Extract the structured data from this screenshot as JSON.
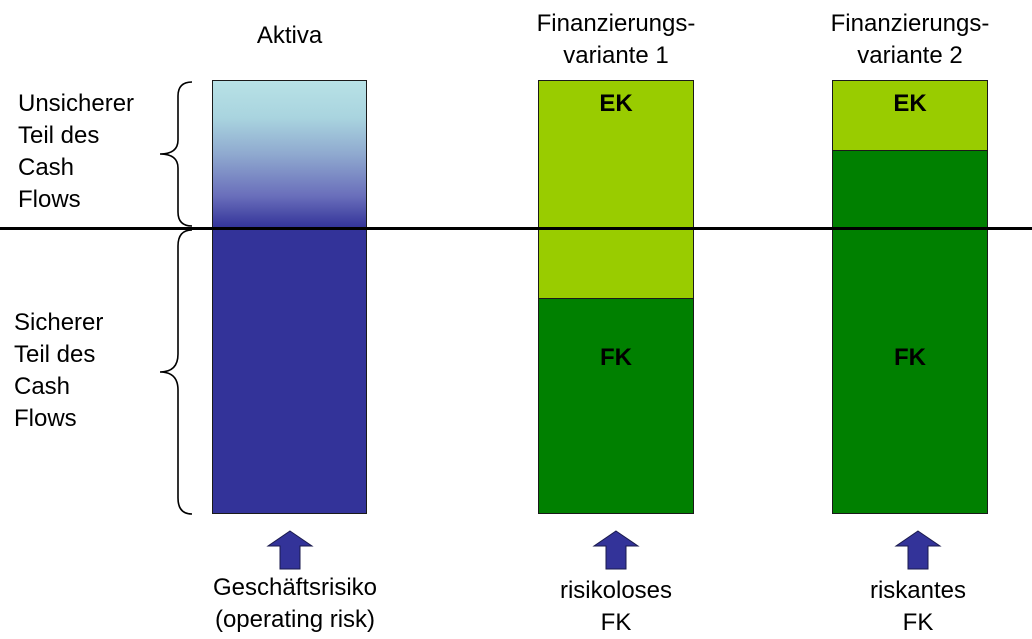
{
  "labels": {
    "aktiva": "Aktiva",
    "variant1": "Finanzierungs-\nvariante 1",
    "variant2": "Finanzierungs-\nvariante 2",
    "unsicher": "Unsicherer\nTeil des\nCash\nFlows",
    "sicher": "Sicherer\nTeil des\nCash\nFlows",
    "ek1": "EK",
    "fk1": "FK",
    "ek2": "EK",
    "fk2": "FK",
    "bottom_aktiva": "Geschäftsrisiko\n(operating risk)",
    "bottom_variant1": "risikoloses\nFK",
    "bottom_variant2": "riskantes\nFK"
  },
  "colors": {
    "asset_dark": "#333399",
    "asset_light": "#b8e2e6",
    "ek": "#99cc00",
    "fk": "#008000",
    "arrow": "#333399"
  },
  "icons": [
    "left-brace-icon",
    "up-arrow-icon"
  ]
}
